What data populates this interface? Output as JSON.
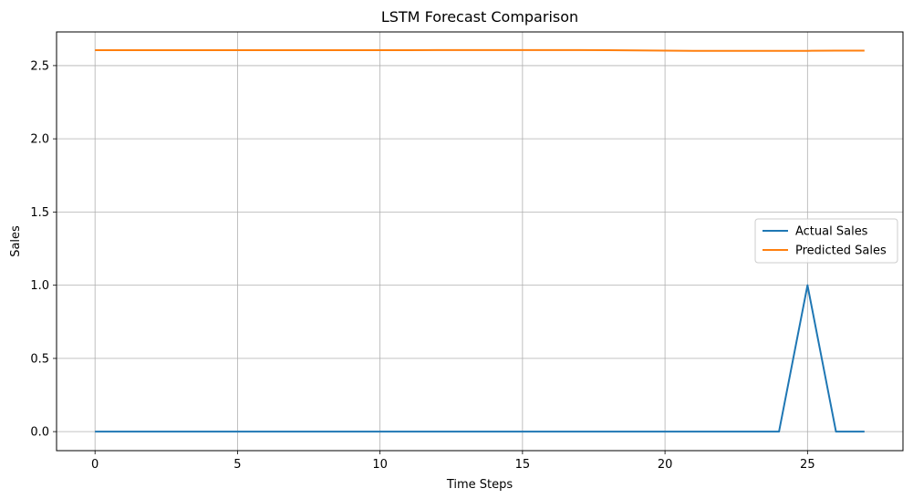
{
  "chart_data": {
    "type": "line",
    "title": "LSTM Forecast Comparison",
    "xlabel": "Time Steps",
    "ylabel": "Sales",
    "xlim": [
      -1.35,
      28.35
    ],
    "ylim": [
      -0.13,
      2.73
    ],
    "xticks": [
      0,
      5,
      10,
      15,
      20,
      25
    ],
    "xtick_labels": [
      "0",
      "5",
      "10",
      "15",
      "20",
      "25"
    ],
    "yticks": [
      0.0,
      0.5,
      1.0,
      1.5,
      2.0,
      2.5
    ],
    "ytick_labels": [
      "0.0",
      "0.5",
      "1.0",
      "1.5",
      "2.0",
      "2.5"
    ],
    "grid": true,
    "legend_position": "center-right",
    "x": [
      0,
      1,
      2,
      3,
      4,
      5,
      6,
      7,
      8,
      9,
      10,
      11,
      12,
      13,
      14,
      15,
      16,
      17,
      18,
      19,
      20,
      21,
      22,
      23,
      24,
      25,
      26,
      27
    ],
    "series": [
      {
        "name": "Actual Sales",
        "color": "#1f77b4",
        "values": [
          0,
          0,
          0,
          0,
          0,
          0,
          0,
          0,
          0,
          0,
          0,
          0,
          0,
          0,
          0,
          0,
          0,
          0,
          0,
          0,
          0,
          0,
          0,
          0,
          0,
          1.0,
          0,
          0
        ]
      },
      {
        "name": "Predicted Sales",
        "color": "#ff7f0e",
        "values": [
          2.605,
          2.605,
          2.605,
          2.605,
          2.605,
          2.605,
          2.605,
          2.605,
          2.605,
          2.605,
          2.605,
          2.605,
          2.606,
          2.606,
          2.606,
          2.606,
          2.606,
          2.606,
          2.605,
          2.604,
          2.602,
          2.601,
          2.601,
          2.601,
          2.601,
          2.601,
          2.602,
          2.602
        ]
      }
    ]
  }
}
